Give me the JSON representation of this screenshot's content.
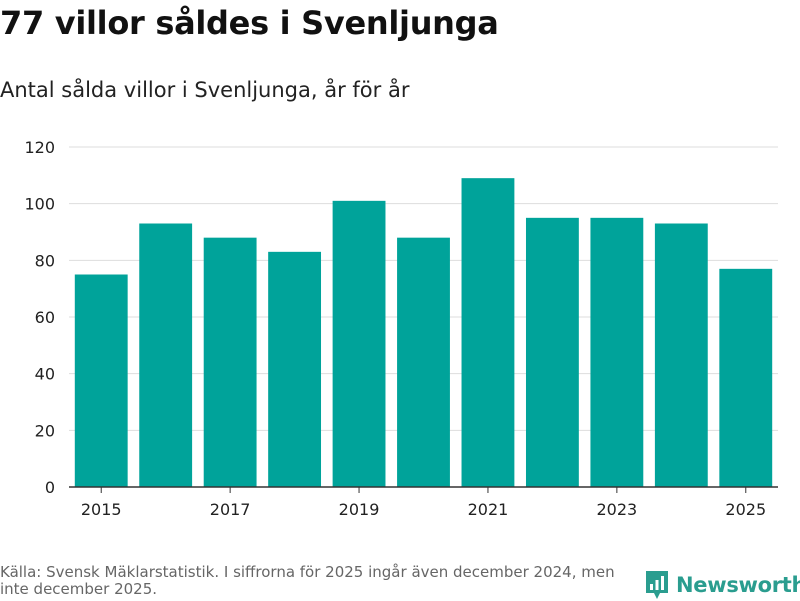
{
  "header": {
    "title": "77 villor såldes i Svenljunga",
    "subtitle": "Antal sålda villor i Svenljunga, år för år"
  },
  "footer": {
    "source": "Källa: Svensk Mäklarstatistik. I siffrorna för 2025 ingår även december 2024, men inte december 2025.",
    "brand": "Newsworthy"
  },
  "colors": {
    "bar": "#00a39a",
    "grid": "#dddddd",
    "axis": "#333333",
    "brand": "#2a9d8f"
  },
  "chart_data": {
    "type": "bar",
    "title": "77 villor såldes i Svenljunga",
    "subtitle": "Antal sålda villor i Svenljunga, år för år",
    "xlabel": "",
    "ylabel": "",
    "categories": [
      "2015",
      "2016",
      "2017",
      "2018",
      "2019",
      "2020",
      "2021",
      "2022",
      "2023",
      "2024",
      "2025"
    ],
    "values": [
      75,
      93,
      88,
      83,
      101,
      88,
      109,
      95,
      95,
      93,
      77
    ],
    "x_tick_labels": [
      "2015",
      "2017",
      "2019",
      "2021",
      "2023",
      "2025"
    ],
    "y_ticks": [
      0,
      20,
      40,
      60,
      80,
      100,
      120
    ],
    "ylim": [
      0,
      120
    ],
    "grid": true
  }
}
